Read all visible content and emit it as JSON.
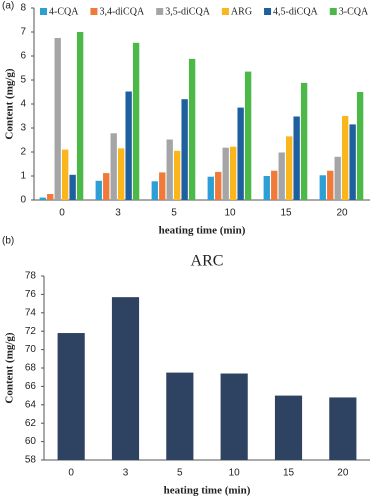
{
  "chart_data": [
    {
      "type": "bar",
      "panel_label": "(a)",
      "y_label": "Content (mg/g)",
      "x_label": "heating time (min)",
      "categories": [
        "0",
        "3",
        "5",
        "10",
        "15",
        "20"
      ],
      "series": [
        {
          "name": "4-CQA",
          "color": "#2e9fd4",
          "values": [
            0.1,
            0.8,
            0.78,
            0.97,
            1.0,
            1.03
          ]
        },
        {
          "name": "3,4-diCQA",
          "color": "#f07a3a",
          "values": [
            0.25,
            1.12,
            1.15,
            1.17,
            1.22,
            1.22
          ]
        },
        {
          "name": "3,5-diCQA",
          "color": "#a5a5a5",
          "values": [
            6.75,
            2.78,
            2.52,
            2.18,
            1.98,
            1.8
          ]
        },
        {
          "name": "ARG",
          "color": "#fbb51d",
          "values": [
            2.1,
            2.15,
            2.05,
            2.22,
            2.65,
            3.5
          ]
        },
        {
          "name": "4,5-diCQA",
          "color": "#1e5f9f",
          "values": [
            1.05,
            4.52,
            4.2,
            3.85,
            3.48,
            3.15
          ]
        },
        {
          "name": "3-CQA",
          "color": "#4cb848",
          "values": [
            7.0,
            6.55,
            5.88,
            5.35,
            4.88,
            4.5
          ]
        }
      ],
      "ylim": [
        0,
        8
      ],
      "yticks": [
        0,
        1,
        2,
        3,
        4,
        5,
        6,
        7,
        8
      ]
    },
    {
      "type": "bar",
      "panel_label": "(b)",
      "title": "ARC",
      "y_label": "Content (mg/g)",
      "x_label": "heating time (min)",
      "categories": [
        "0",
        "3",
        "5",
        "10",
        "15",
        "20"
      ],
      "values": [
        71.8,
        75.7,
        67.5,
        67.4,
        65.0,
        64.8
      ],
      "color": "#2e4361",
      "ylim": [
        58,
        78
      ],
      "yticks": [
        58,
        60,
        62,
        64,
        66,
        68,
        70,
        72,
        74,
        76,
        78
      ]
    }
  ]
}
